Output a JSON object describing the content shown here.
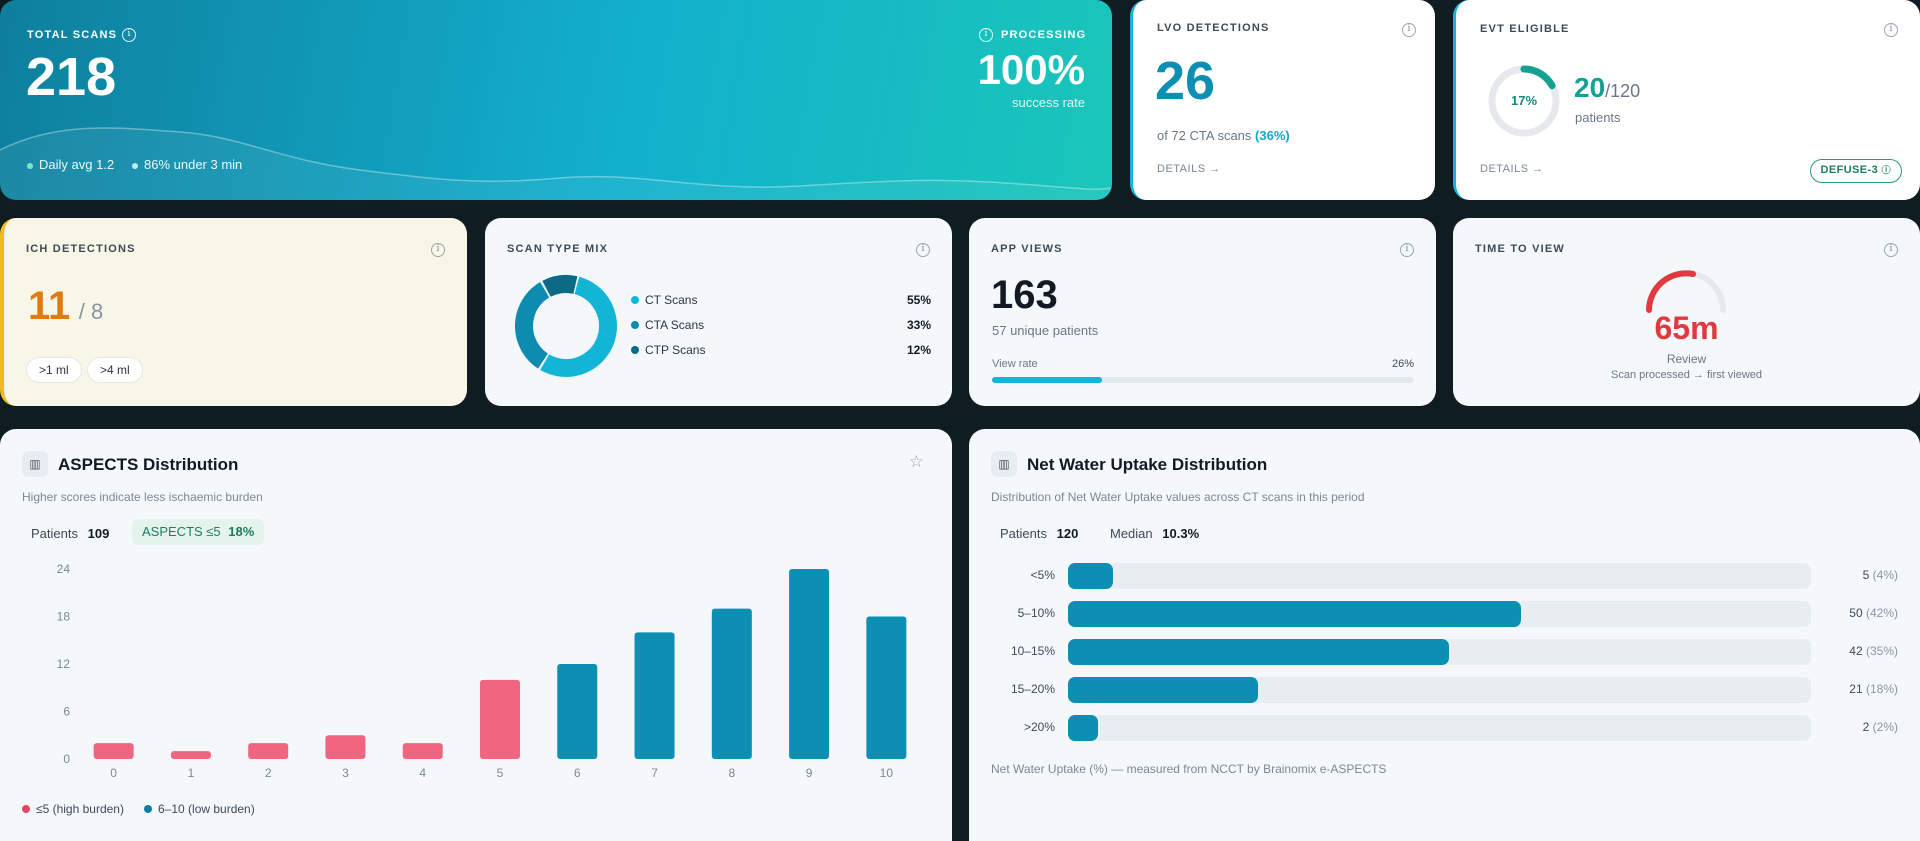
{
  "total_scans": {
    "label": "TOTAL SCANS",
    "value": "218",
    "processing_label": "PROCESSING",
    "processing_value": "100%",
    "processing_sub": "success rate",
    "stat1": "Daily avg 1.2",
    "stat2": "86% under 3 min"
  },
  "lvo": {
    "label": "LVO DETECTIONS",
    "value": "26",
    "sub": "of 72 CTA scans",
    "pct": "(36%)",
    "link": "DETAILS →"
  },
  "evt": {
    "label": "EVT ELIGIBLE",
    "ring_label": "17%",
    "ring_fraction": 0.17,
    "value": "20",
    "total": "/120",
    "sub": "patients",
    "link": "DETAILS →",
    "badge": "DEFUSE-3"
  },
  "ich": {
    "label": "ICH DETECTIONS",
    "value": "11",
    "secondary": "/ 8",
    "chip1": ">1 ml",
    "chip2": ">4 ml"
  },
  "scan_mix": {
    "label": "SCAN TYPE MIX",
    "items": [
      {
        "name": "CT Scans",
        "pct": "55%",
        "value": 55,
        "color": "#12b5d6"
      },
      {
        "name": "CTA Scans",
        "pct": "33%",
        "value": 33,
        "color": "#0d8cb0"
      },
      {
        "name": "CTP Scans",
        "pct": "12%",
        "value": 12,
        "color": "#0b6a86"
      }
    ]
  },
  "app_views": {
    "label": "APP VIEWS",
    "value": "163",
    "sub": "57 unique patients",
    "rate_label": "View rate",
    "rate_value": "26%",
    "rate_fraction": 0.26
  },
  "time_to_view": {
    "label": "TIME TO VIEW",
    "value": "65m",
    "status": "Review",
    "sub": "Scan processed → first viewed"
  },
  "aspects": {
    "title": "ASPECTS Distribution",
    "subtitle": "Higher scores indicate less ischaemic burden",
    "patients_label": "Patients",
    "patients_value": "109",
    "badge_label": "ASPECTS ≤5",
    "badge_value": "18%",
    "legend_low": "≤5 (high burden)",
    "legend_high": "6–10 (low burden)"
  },
  "nwu": {
    "title": "Net Water Uptake Distribution",
    "subtitle": "Distribution of Net Water Uptake values across CT scans in this period",
    "patients_label": "Patients",
    "patients_value": "120",
    "median_label": "Median",
    "median_value": "10.3%",
    "footer": "Net Water Uptake (%) — measured from NCCT by Brainomix e-ASPECTS",
    "rows": [
      {
        "label": "<5%",
        "count": "5",
        "pct": "(4%)",
        "value": 5
      },
      {
        "label": "5–10%",
        "count": "50",
        "pct": "(42%)",
        "value": 50
      },
      {
        "label": "10–15%",
        "count": "42",
        "pct": "(35%)",
        "value": 42
      },
      {
        "label": "15–20%",
        "count": "21",
        "pct": "(18%)",
        "value": 21
      },
      {
        "label": ">20%",
        "count": "2",
        "pct": "(2%)",
        "value": 2
      }
    ]
  },
  "colors": {
    "accent": "#0c8fb3",
    "high_burden": "#f0657f",
    "low_burden": "#0c8fb3",
    "ich": "#e07b12",
    "red": "#e0393e",
    "green": "#18885a"
  },
  "chart_data": {
    "type": "bar",
    "categories": [
      "0",
      "1",
      "2",
      "3",
      "4",
      "5",
      "6",
      "7",
      "8",
      "9",
      "10"
    ],
    "values": [
      2,
      1,
      2,
      3,
      2,
      10,
      12,
      16,
      19,
      24,
      18
    ],
    "ylim": [
      0,
      24
    ],
    "yticks": [
      0,
      6,
      12,
      18,
      24
    ],
    "series": [
      {
        "name": "≤5 (high burden)",
        "categories": [
          "0",
          "1",
          "2",
          "3",
          "4",
          "5"
        ]
      },
      {
        "name": "6–10 (low burden)",
        "categories": [
          "6",
          "7",
          "8",
          "9",
          "10"
        ]
      }
    ]
  }
}
